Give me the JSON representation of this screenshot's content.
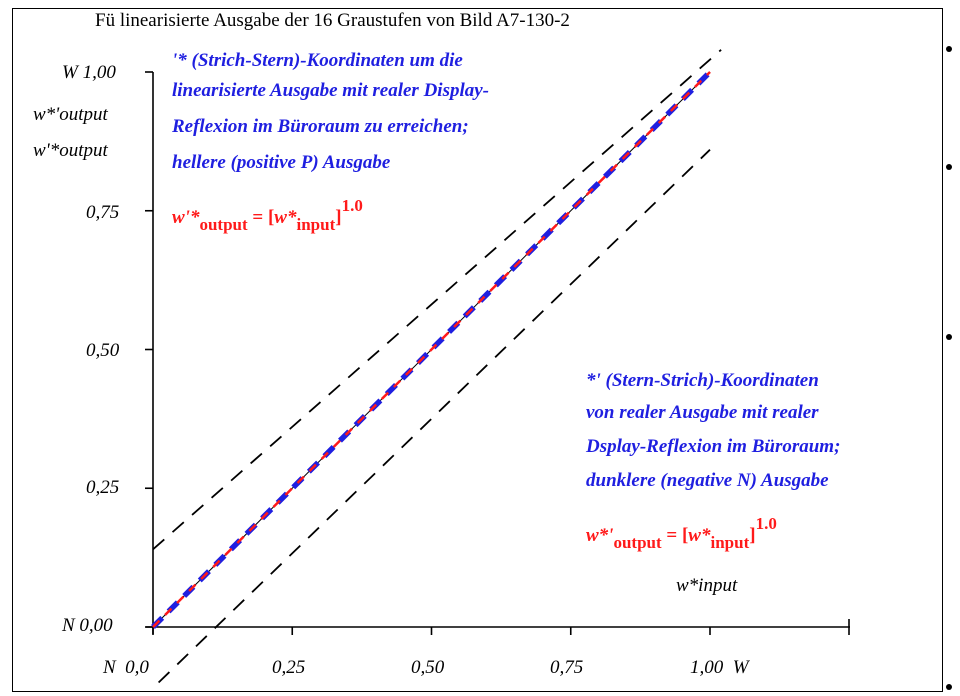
{
  "title": "Fü linearisierte Ausgabe der 16 Graustufen von Bild A7-130-2",
  "y_labels": {
    "top": "W 1,00",
    "line1": "w*'output",
    "line2": "w'*output",
    "v075": "0,75",
    "v050": "0,50",
    "v025": "0,25",
    "bottom": "N 0,00"
  },
  "x_labels": {
    "v000": "N  0,0",
    "v025": "0,25",
    "v050": "0,50",
    "v075": "0,75",
    "v100": "1,00  W",
    "input": "w*input"
  },
  "annotation_top": {
    "lines": [
      "'* (Strich-Stern)-Koordinaten um die",
      "linearisierte Ausgabe mit realer Display-",
      "Reflexion im Büroraum zu erreichen;",
      "hellere (positive P) Ausgabe"
    ],
    "formula": {
      "lhs": "w'*",
      "lhs_sub": "output",
      "eq": " = [",
      "rhs": "w*",
      "rhs_sub": "input",
      "close": "]",
      "exp": "1.0"
    }
  },
  "annotation_bottom": {
    "lines": [
      "*' (Stern-Strich)-Koordinaten",
      "von realer Ausgabe mit realer",
      "Dsplay-Reflexion im Büroraum;",
      "dunklere (negative N) Ausgabe"
    ],
    "formula": {
      "lhs": "w*'",
      "lhs_sub": "output",
      "eq": " = [",
      "rhs": "w*",
      "rhs_sub": "input",
      "close": "]",
      "exp": "1.0"
    }
  },
  "chart_data": {
    "type": "line",
    "title": "Fü linearisierte Ausgabe der 16 Graustufen von Bild A7-130-2",
    "xlabel": "w*input",
    "ylabel": "w*'output / w'*output",
    "xlim": [
      0,
      1
    ],
    "ylim": [
      0,
      1
    ],
    "x_ticks": [
      "N  0,0",
      "0,25",
      "0,50",
      "0,75",
      "1,00  W"
    ],
    "y_ticks": [
      "N 0,00",
      "0,25",
      "0,50",
      "0,75",
      "W 1,00"
    ],
    "grid": false,
    "series": [
      {
        "style": "blue dashed",
        "color": "#1f1fe0",
        "x": [
          0,
          0.0667,
          0.1333,
          0.2,
          0.2667,
          0.3333,
          0.4,
          0.4667,
          0.5333,
          0.6,
          0.6667,
          0.7333,
          0.8,
          0.8667,
          0.9333,
          1.0
        ],
        "y": [
          0,
          0.0667,
          0.1333,
          0.2,
          0.2667,
          0.3333,
          0.4,
          0.4667,
          0.5333,
          0.6,
          0.6667,
          0.7333,
          0.8,
          0.8667,
          0.9333,
          1.0
        ]
      },
      {
        "style": "red dashed",
        "color": "#ff1a1a",
        "x": [
          0,
          1
        ],
        "y": [
          0,
          1
        ]
      },
      {
        "style": "black dashed upper bound",
        "color": "#000000",
        "x": [
          0,
          1.02
        ],
        "y": [
          0.14,
          1.04
        ]
      },
      {
        "style": "black dashed lower bound",
        "color": "#000000",
        "x": [
          0.01,
          1
        ],
        "y": [
          -0.1,
          0.86
        ]
      }
    ]
  }
}
